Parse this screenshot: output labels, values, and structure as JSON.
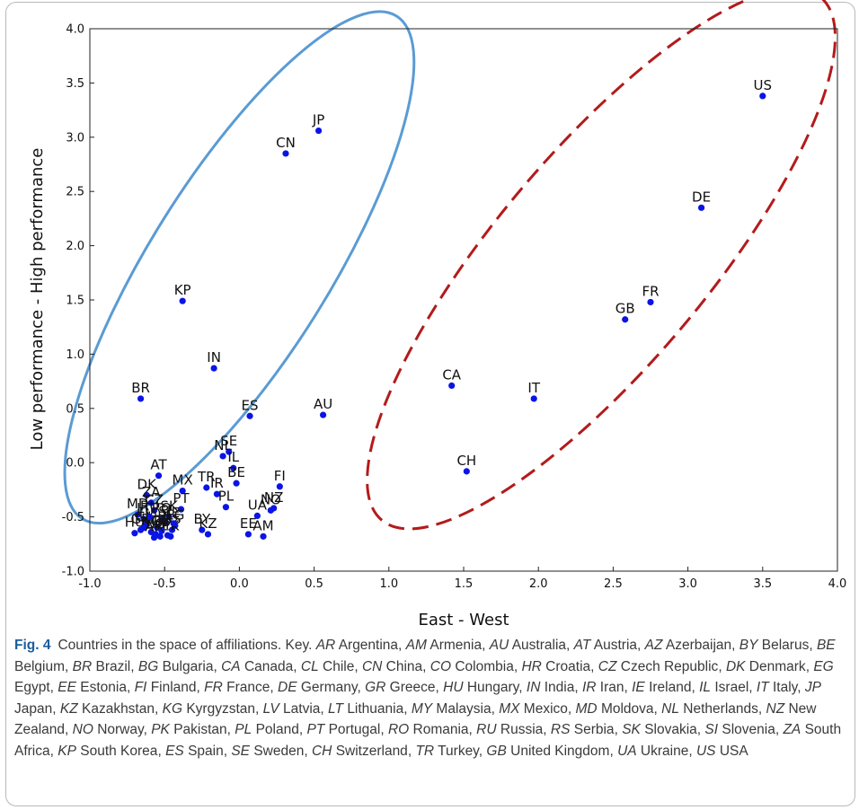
{
  "chart_data": {
    "type": "scatter",
    "xlabel": "East - West",
    "ylabel": "Low performance - High performance",
    "xlim": [
      -1.0,
      4.0
    ],
    "ylim": [
      -1.0,
      4.0
    ],
    "x_ticks": [
      "-1.0",
      "-0.5",
      "0.0",
      "0.5",
      "1.0",
      "1.5",
      "2.0",
      "2.5",
      "3.0",
      "3.5",
      "4.0"
    ],
    "y_ticks": [
      "-1.0",
      "-0.5",
      "0.0",
      "0.5",
      "1.0",
      "1.5",
      "2.0",
      "2.5",
      "3.0",
      "3.5",
      "4.0"
    ],
    "grid": false,
    "point_color": "#0a14e6",
    "ellipse_colors": {
      "east_group": "#5a9bd4",
      "west_group": "#b31b1b"
    },
    "points": [
      {
        "label": "US",
        "x": 3.5,
        "y": 3.38
      },
      {
        "label": "DE",
        "x": 3.09,
        "y": 2.35
      },
      {
        "label": "FR",
        "x": 2.75,
        "y": 1.48
      },
      {
        "label": "GB",
        "x": 2.58,
        "y": 1.32
      },
      {
        "label": "CA",
        "x": 1.42,
        "y": 0.71
      },
      {
        "label": "IT",
        "x": 1.97,
        "y": 0.59
      },
      {
        "label": "CH",
        "x": 1.52,
        "y": -0.08
      },
      {
        "label": "JP",
        "x": 0.53,
        "y": 3.06
      },
      {
        "label": "CN",
        "x": 0.31,
        "y": 2.85
      },
      {
        "label": "KP",
        "x": -0.38,
        "y": 1.49
      },
      {
        "label": "IN",
        "x": -0.17,
        "y": 0.87
      },
      {
        "label": "BR",
        "x": -0.66,
        "y": 0.59
      },
      {
        "label": "ES",
        "x": 0.07,
        "y": 0.43
      },
      {
        "label": "AU",
        "x": 0.56,
        "y": 0.44
      },
      {
        "label": "SE",
        "x": -0.07,
        "y": 0.1
      },
      {
        "label": "NL",
        "x": -0.11,
        "y": 0.06
      },
      {
        "label": "IL",
        "x": -0.04,
        "y": -0.05
      },
      {
        "label": "BE",
        "x": -0.02,
        "y": -0.19
      },
      {
        "label": "AT",
        "x": -0.54,
        "y": -0.12
      },
      {
        "label": "MX",
        "x": -0.38,
        "y": -0.26
      },
      {
        "label": "TR",
        "x": -0.22,
        "y": -0.23
      },
      {
        "label": "IR",
        "x": -0.15,
        "y": -0.29
      },
      {
        "label": "PL",
        "x": -0.09,
        "y": -0.41
      },
      {
        "label": "FI",
        "x": 0.27,
        "y": -0.22
      },
      {
        "label": "NZ",
        "x": 0.23,
        "y": -0.42
      },
      {
        "label": "NO",
        "x": 0.21,
        "y": -0.44
      },
      {
        "label": "UA",
        "x": 0.12,
        "y": -0.49
      },
      {
        "label": "EE",
        "x": 0.06,
        "y": -0.66
      },
      {
        "label": "AM",
        "x": 0.16,
        "y": -0.68
      },
      {
        "label": "BY",
        "x": -0.25,
        "y": -0.62
      },
      {
        "label": "KZ",
        "x": -0.21,
        "y": -0.66
      },
      {
        "label": "DK",
        "x": -0.62,
        "y": -0.3
      },
      {
        "label": "PT",
        "x": -0.39,
        "y": -0.43
      },
      {
        "label": "ZA",
        "x": -0.59,
        "y": -0.37
      },
      {
        "label": "CZ",
        "x": -0.57,
        "y": -0.44
      },
      {
        "label": "MD",
        "x": -0.68,
        "y": -0.48
      },
      {
        "label": "LT",
        "x": -0.64,
        "y": -0.52
      },
      {
        "label": "SK",
        "x": -0.47,
        "y": -0.5
      },
      {
        "label": "RO",
        "x": -0.52,
        "y": -0.52
      },
      {
        "label": "LV",
        "x": -0.62,
        "y": -0.57
      },
      {
        "label": "HR",
        "x": -0.55,
        "y": -0.6
      },
      {
        "label": "SI",
        "x": -0.5,
        "y": -0.55
      },
      {
        "label": "RS",
        "x": -0.45,
        "y": -0.62
      },
      {
        "label": "BG",
        "x": -0.56,
        "y": -0.66
      },
      {
        "label": "HU",
        "x": -0.7,
        "y": -0.65
      },
      {
        "label": "GR",
        "x": -0.66,
        "y": -0.62
      },
      {
        "label": "EG",
        "x": -0.43,
        "y": -0.58
      },
      {
        "label": "AZ",
        "x": -0.53,
        "y": -0.68
      },
      {
        "label": "KG",
        "x": -0.59,
        "y": -0.64
      },
      {
        "label": "MY",
        "x": -0.48,
        "y": -0.67
      },
      {
        "label": "PK",
        "x": -0.46,
        "y": -0.68
      },
      {
        "label": "RU",
        "x": -0.6,
        "y": -0.5
      },
      {
        "label": "CL",
        "x": -0.64,
        "y": -0.6
      },
      {
        "label": "CO",
        "x": -0.52,
        "y": -0.63
      },
      {
        "label": "AR",
        "x": -0.57,
        "y": -0.69
      },
      {
        "label": "IE",
        "x": -0.44,
        "y": -0.56
      }
    ]
  },
  "caption": {
    "fig_label": "Fig. 4",
    "intro": "Countries in the space of affiliations. Key.",
    "key": [
      [
        "AR",
        "Argentina"
      ],
      [
        "AM",
        "Armenia"
      ],
      [
        "AU",
        "Australia"
      ],
      [
        "AT",
        "Austria"
      ],
      [
        "AZ",
        "Azerbaijan"
      ],
      [
        "BY",
        "Belarus"
      ],
      [
        "BE",
        "Belgium"
      ],
      [
        "BR",
        "Brazil"
      ],
      [
        "BG",
        "Bulgaria"
      ],
      [
        "CA",
        "Canada"
      ],
      [
        "CL",
        "Chile"
      ],
      [
        "CN",
        "China"
      ],
      [
        "CO",
        "Colombia"
      ],
      [
        "HR",
        "Croatia"
      ],
      [
        "CZ",
        "Czech Republic"
      ],
      [
        "DK",
        "Denmark"
      ],
      [
        "EG",
        "Egypt"
      ],
      [
        "EE",
        "Estonia"
      ],
      [
        "FI",
        "Finland"
      ],
      [
        "FR",
        "France"
      ],
      [
        "DE",
        "Germany"
      ],
      [
        "GR",
        "Greece"
      ],
      [
        "HU",
        "Hungary"
      ],
      [
        "IN",
        "India"
      ],
      [
        "IR",
        "Iran"
      ],
      [
        "IE",
        "Ireland"
      ],
      [
        "IL",
        "Israel"
      ],
      [
        "IT",
        "Italy"
      ],
      [
        "JP",
        "Japan"
      ],
      [
        "KZ",
        "Kazakhstan"
      ],
      [
        "KG",
        "Kyrgyzstan"
      ],
      [
        "LV",
        "Latvia"
      ],
      [
        "LT",
        "Lithuania"
      ],
      [
        "MY",
        "Malaysia"
      ],
      [
        "MX",
        "Mexico"
      ],
      [
        "MD",
        "Moldova"
      ],
      [
        "NL",
        "Netherlands"
      ],
      [
        "NZ",
        "New Zealand"
      ],
      [
        "NO",
        "Norway"
      ],
      [
        "PK",
        "Pakistan"
      ],
      [
        "PL",
        "Poland"
      ],
      [
        "PT",
        "Portugal"
      ],
      [
        "RO",
        "Romania"
      ],
      [
        "RU",
        "Russia"
      ],
      [
        "RS",
        "Serbia"
      ],
      [
        "SK",
        "Slovakia"
      ],
      [
        "SI",
        "Slovenia"
      ],
      [
        "ZA",
        "South Africa"
      ],
      [
        "KP",
        "South Korea"
      ],
      [
        "ES",
        "Spain"
      ],
      [
        "SE",
        "Sweden"
      ],
      [
        "CH",
        "Switzerland"
      ],
      [
        "TR",
        "Turkey"
      ],
      [
        "GB",
        "United Kingdom"
      ],
      [
        "UA",
        "Ukraine"
      ],
      [
        "US",
        "USA"
      ]
    ]
  }
}
